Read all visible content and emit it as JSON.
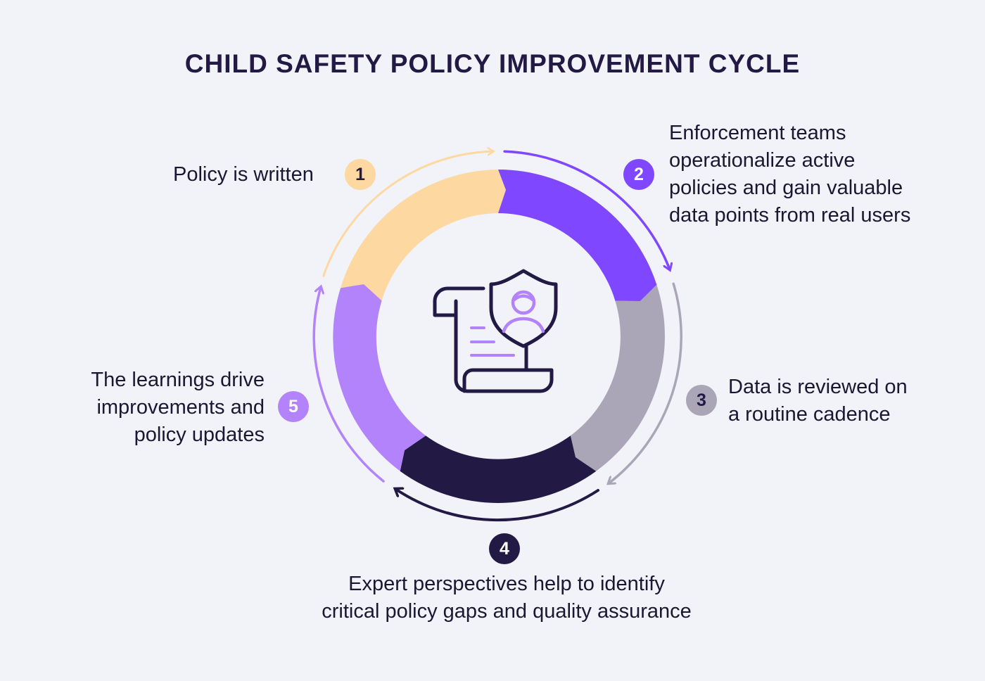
{
  "title": "CHILD SAFETY POLICY IMPROVEMENT CYCLE",
  "center_icon": "policy-scroll-shield-child-icon",
  "steps": [
    {
      "number": "1",
      "text": "Policy is written",
      "color": "#fdd8a1",
      "number_color": "#221a44"
    },
    {
      "number": "2",
      "lines": [
        "Enforcement teams",
        "operationalize active",
        "policies and gain valuable",
        "data points from real users"
      ],
      "color": "#7f47ff",
      "number_color": "#ffffff"
    },
    {
      "number": "3",
      "lines": [
        "Data is reviewed on",
        "a routine cadence"
      ],
      "color": "#aaa6b8",
      "number_color": "#221a44"
    },
    {
      "number": "4",
      "lines": [
        "Expert perspectives help to identify",
        "critical policy gaps and quality assurance"
      ],
      "color": "#221a44",
      "number_color": "#ffffff"
    },
    {
      "number": "5",
      "lines": [
        "The learnings drive",
        "improvements and",
        "policy updates"
      ],
      "color": "#b283fb",
      "number_color": "#ffffff"
    }
  ]
}
